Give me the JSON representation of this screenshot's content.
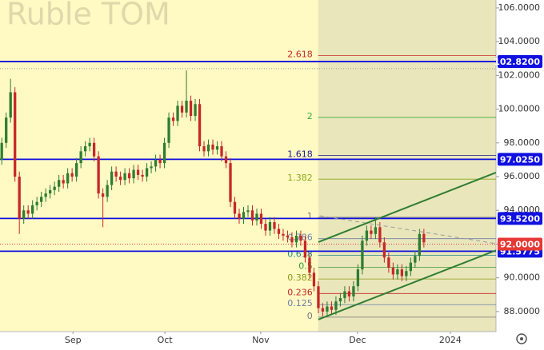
{
  "chart_data": {
    "type": "candlestick",
    "title": "Ruble TOM",
    "up_color": "#2e7d32",
    "down_color": "#c62828",
    "open": [
      97.0,
      98.0,
      99.5,
      101.0,
      96.0,
      93.5,
      94.0,
      93.8,
      94.3,
      94.5,
      94.8,
      95.0,
      95.2,
      95.4,
      95.8,
      95.6,
      96.2,
      96.0,
      96.8,
      97.5,
      97.8,
      98.0,
      97.2,
      95.0,
      94.8,
      95.5,
      96.3,
      96.0,
      95.8,
      96.2,
      95.9,
      96.4,
      96.1,
      96.0,
      96.5,
      96.6,
      97.0,
      96.8,
      98.0,
      99.5,
      99.3,
      100.2,
      99.8,
      100.5,
      99.6,
      100.3,
      97.8,
      97.5,
      97.9,
      97.6,
      97.8,
      97.2,
      96.8,
      94.5,
      93.8,
      93.5,
      93.9,
      94.0,
      93.4,
      93.8,
      93.2,
      92.8,
      93.3,
      92.9,
      92.6,
      92.5,
      92.4,
      92.1,
      92.5,
      92.2,
      91.2,
      90.3,
      89.5,
      88.2,
      88.0,
      88.3,
      88.1,
      88.6,
      88.8,
      89.2,
      88.9,
      89.5,
      90.5,
      92.2,
      92.8,
      92.6,
      93.0,
      92.1,
      91.2,
      90.6,
      90.2,
      90.5,
      90.1,
      90.4,
      90.9,
      91.3,
      92.6
    ],
    "high": [
      98.3,
      99.8,
      101.8,
      101.3,
      96.3,
      94.3,
      94.3,
      94.6,
      94.8,
      95.1,
      95.3,
      95.5,
      95.7,
      96.1,
      96.1,
      96.5,
      96.5,
      97.1,
      97.8,
      98.1,
      98.3,
      98.3,
      97.5,
      95.3,
      95.8,
      96.6,
      96.6,
      96.3,
      96.5,
      96.5,
      96.7,
      96.7,
      96.4,
      96.8,
      96.9,
      97.3,
      97.3,
      98.3,
      99.8,
      99.8,
      100.5,
      100.5,
      102.3,
      100.8,
      100.6,
      100.6,
      98.1,
      98.2,
      98.2,
      98.1,
      98.1,
      97.5,
      97.1,
      94.8,
      94.1,
      94.2,
      94.3,
      94.3,
      94.1,
      94.1,
      93.5,
      93.6,
      93.6,
      93.2,
      92.9,
      92.8,
      92.7,
      92.8,
      92.8,
      92.5,
      91.5,
      90.6,
      89.8,
      88.5,
      88.6,
      88.6,
      88.9,
      89.1,
      89.5,
      89.5,
      89.8,
      90.8,
      92.5,
      93.1,
      93.1,
      93.6,
      93.3,
      92.4,
      91.5,
      90.9,
      90.8,
      90.8,
      90.7,
      91.2,
      91.6,
      92.9,
      92.9
    ],
    "low": [
      96.7,
      97.7,
      99.2,
      95.7,
      92.6,
      93.2,
      93.5,
      93.5,
      94.0,
      94.2,
      94.5,
      94.7,
      94.9,
      95.1,
      95.3,
      95.3,
      95.7,
      95.7,
      96.5,
      97.2,
      97.5,
      96.9,
      94.7,
      93.0,
      94.5,
      95.2,
      95.7,
      95.5,
      95.5,
      95.6,
      95.6,
      95.8,
      95.7,
      95.7,
      96.2,
      96.3,
      96.5,
      96.5,
      97.7,
      99.0,
      99.0,
      99.5,
      99.5,
      99.3,
      99.3,
      97.5,
      97.2,
      97.2,
      97.3,
      97.3,
      96.9,
      96.5,
      94.2,
      93.5,
      93.2,
      93.2,
      93.6,
      93.1,
      93.1,
      92.9,
      92.5,
      92.5,
      92.6,
      92.3,
      92.2,
      92.1,
      91.8,
      91.8,
      91.9,
      90.9,
      90.0,
      89.2,
      87.9,
      87.7,
      87.7,
      87.8,
      87.8,
      88.3,
      88.5,
      88.6,
      88.6,
      89.2,
      90.2,
      91.9,
      92.3,
      92.3,
      91.8,
      90.9,
      90.3,
      89.9,
      89.9,
      89.8,
      89.8,
      90.1,
      90.6,
      91.0,
      91.8
    ],
    "close": [
      98.0,
      99.5,
      101.0,
      96.0,
      93.5,
      94.0,
      93.8,
      94.3,
      94.5,
      94.8,
      95.0,
      95.2,
      95.4,
      95.8,
      95.6,
      96.2,
      96.0,
      96.8,
      97.5,
      97.8,
      98.0,
      97.2,
      95.0,
      94.8,
      95.5,
      96.3,
      96.0,
      95.8,
      96.2,
      95.9,
      96.4,
      96.1,
      96.0,
      96.5,
      96.6,
      97.0,
      96.8,
      98.0,
      99.5,
      99.3,
      100.2,
      99.8,
      100.5,
      99.6,
      100.3,
      97.8,
      97.5,
      97.9,
      97.6,
      97.8,
      97.2,
      96.8,
      94.5,
      93.8,
      93.5,
      93.9,
      94.0,
      93.4,
      93.8,
      93.2,
      92.8,
      93.3,
      92.9,
      92.6,
      92.5,
      92.4,
      92.1,
      92.5,
      92.2,
      91.2,
      90.3,
      89.5,
      88.2,
      88.0,
      88.3,
      88.1,
      88.6,
      88.8,
      89.2,
      88.9,
      89.5,
      90.5,
      92.2,
      92.8,
      92.6,
      93.0,
      92.1,
      91.2,
      90.6,
      90.2,
      90.5,
      90.1,
      90.4,
      90.9,
      91.3,
      92.6,
      92.1
    ],
    "xlim": [
      -0.4,
      112.4
    ],
    "ylim": [
      86.81,
      106.47
    ],
    "yticks": [
      {
        "value": 88,
        "label": "88.0000"
      },
      {
        "value": 90,
        "label": "90.0000"
      },
      {
        "value": 92,
        "label": "92.0000"
      },
      {
        "value": 94,
        "label": "94.0000"
      },
      {
        "value": 96,
        "label": "96.0000"
      },
      {
        "value": 98,
        "label": "98.0000"
      },
      {
        "value": 100,
        "label": "100.0000"
      },
      {
        "value": 102,
        "label": "102.0000"
      },
      {
        "value": 104,
        "label": "104.0000"
      },
      {
        "value": 106,
        "label": "106.0000"
      }
    ],
    "xticks": [
      {
        "value": 16.2,
        "label": "Sep"
      },
      {
        "value": 37.1,
        "label": "Oct"
      },
      {
        "value": 58.9,
        "label": "Nov"
      },
      {
        "value": 80.9,
        "label": "Dec"
      },
      {
        "value": 102,
        "label": "2024"
      }
    ],
    "levels": [
      {
        "value": 102.82,
        "label": "102.8200"
      },
      {
        "value": 97.025,
        "label": "97.0250"
      },
      {
        "value": 93.52,
        "label": "93.5200"
      },
      {
        "value": 91.5775,
        "label": "91.5775"
      }
    ],
    "level_color": "#1010e0",
    "price": {
      "value": 92.0,
      "label": "92.0000",
      "color": "#e53935"
    },
    "reference_line": 102.4,
    "fib": {
      "start": 71.96,
      "levels": [
        {
          "label": "0",
          "value": 87.67,
          "color": "#777777"
        },
        {
          "label": "0.125",
          "value": 88.41,
          "color": "#6d7fa8"
        },
        {
          "label": "0.236",
          "value": 89.07,
          "color": "#c62828"
        },
        {
          "label": "0.382",
          "value": 89.93,
          "color": "#8a9a1a"
        },
        {
          "label": "0.5",
          "value": 90.63,
          "color": "#3a9a3a"
        },
        {
          "label": "0.618",
          "value": 91.33,
          "color": "#1a8a8a"
        },
        {
          "label": "0.786",
          "value": 92.32,
          "color": "#6d7fa8"
        },
        {
          "label": "1",
          "value": 93.59,
          "color": "#777777"
        },
        {
          "label": "1.382",
          "value": 95.85,
          "color": "#8aaa1a"
        },
        {
          "label": "1.618",
          "value": 97.25,
          "color": "#1a1a8a"
        },
        {
          "label": "2",
          "value": 99.51,
          "color": "#3aaa3a"
        },
        {
          "label": "2.618",
          "value": 103.17,
          "color": "#c62828"
        }
      ]
    },
    "channel": {
      "color": "#2e7d32",
      "lines": [
        {
          "from": [
            72.0,
            87.53
          ],
          "to": [
            112.4,
            91.63
          ]
        },
        {
          "from": [
            72.0,
            92.12
          ],
          "to": [
            112.4,
            96.24
          ]
        }
      ]
    },
    "trend": {
      "color": "#999999",
      "from": [
        72.3,
        93.68
      ],
      "to": [
        112.4,
        92.03
      ]
    }
  }
}
